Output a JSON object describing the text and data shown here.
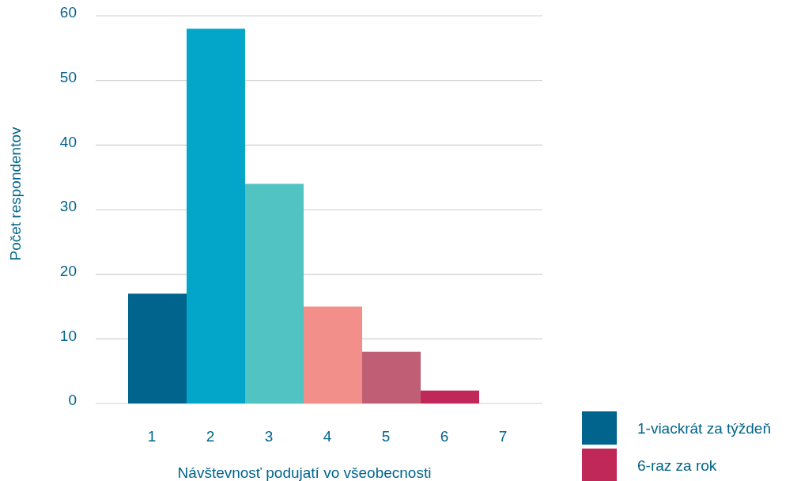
{
  "chart_data": {
    "type": "bar",
    "xlabel": "Návštevnosť podujatí vo všeobecnosti",
    "ylabel": "Počet respondentov",
    "categories": [
      "1",
      "2",
      "3",
      "4",
      "5",
      "6",
      "7"
    ],
    "series": [
      {
        "name": "1-viackrát za týždeň",
        "color": "#00648c",
        "values": [
          17,
          null,
          null,
          null,
          null,
          null,
          null
        ]
      },
      {
        "color": "#03a6c8",
        "values": [
          null,
          58,
          null,
          null,
          null,
          null,
          null
        ]
      },
      {
        "color": "#50c3c2",
        "values": [
          null,
          null,
          34,
          null,
          null,
          null,
          null
        ]
      },
      {
        "color": "#f28f8b",
        "values": [
          null,
          null,
          null,
          15,
          null,
          null,
          null
        ]
      },
      {
        "color": "#c05e75",
        "values": [
          null,
          null,
          null,
          null,
          8,
          null,
          null
        ]
      },
      {
        "name": "6-raz za rok",
        "color": "#c0285a",
        "values": [
          null,
          null,
          null,
          null,
          null,
          2,
          null
        ]
      }
    ],
    "ylim": [
      0,
      60
    ],
    "yticks": [
      0,
      10,
      20,
      30,
      40,
      50,
      60
    ],
    "grid": "y",
    "legend": "bottom right"
  }
}
